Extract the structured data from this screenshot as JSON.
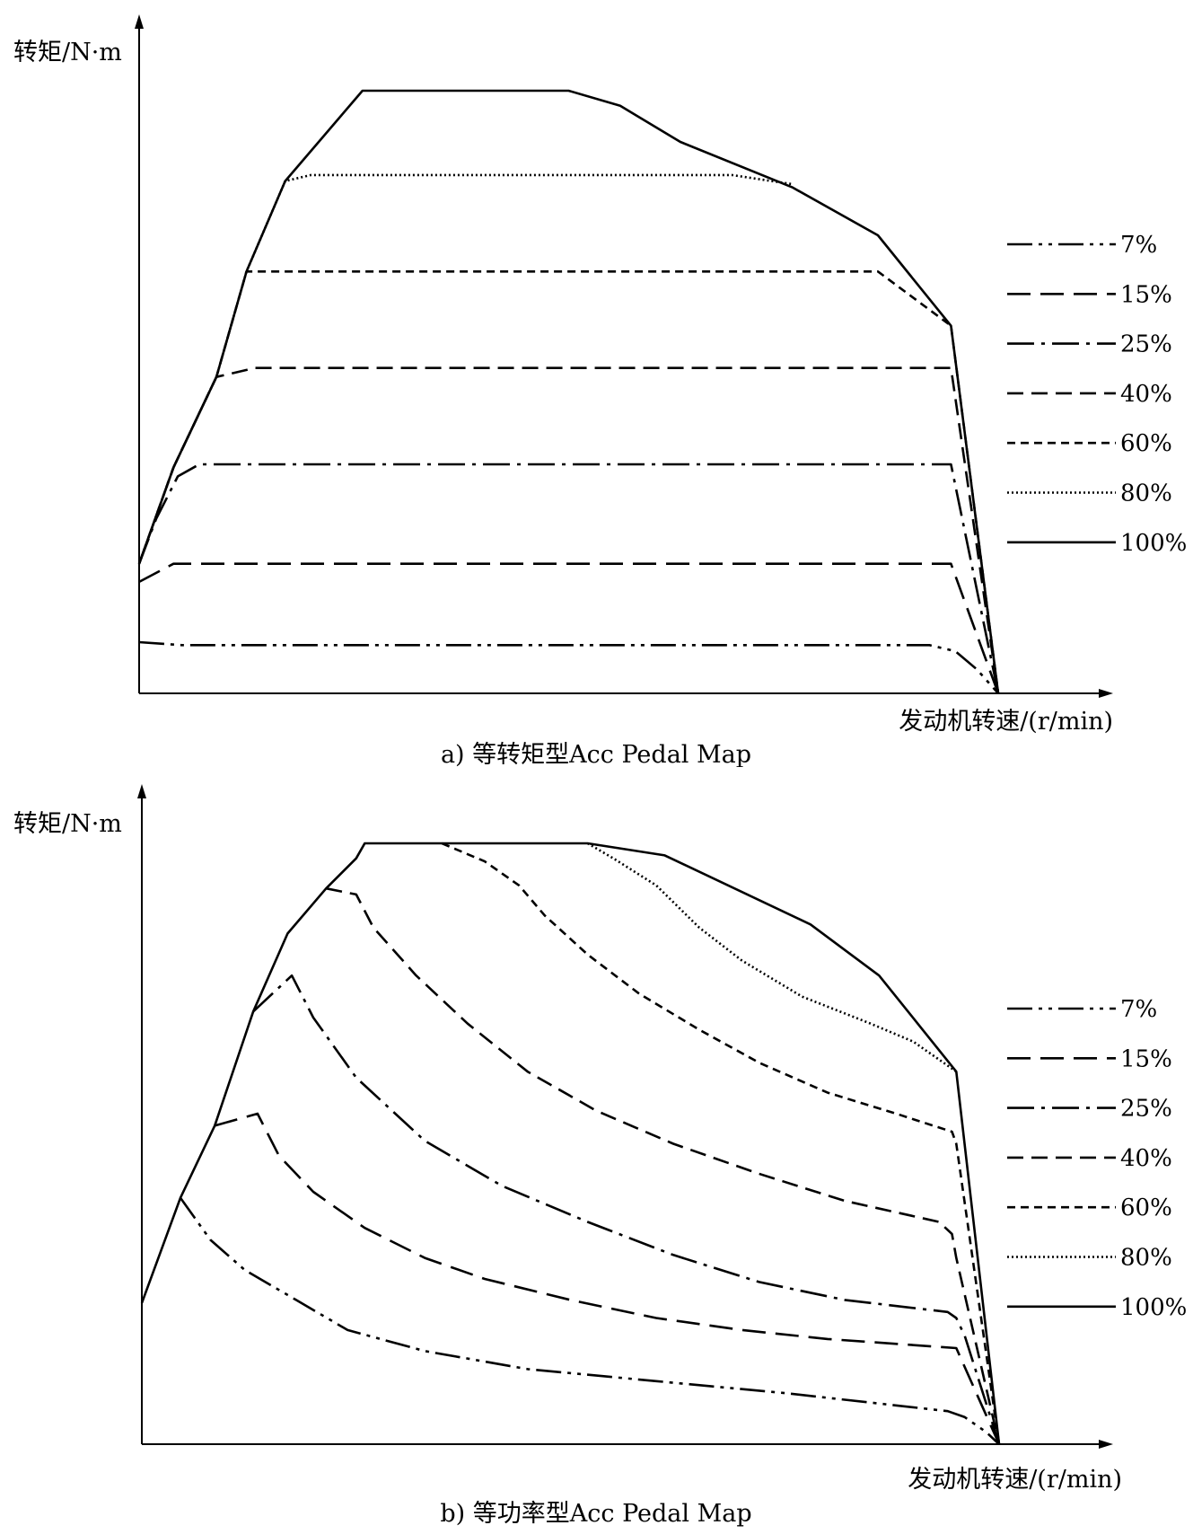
{
  "chart_data": [
    {
      "type": "line",
      "caption": "a) 等转矩型Acc Pedal Map",
      "ylabel": "转矩/N·m",
      "xlabel": "发动机转速/(r/min)",
      "legend": {
        "placement": "right",
        "entries": [
          "7%",
          "15%",
          "25%",
          "40%",
          "60%",
          "80%",
          "100%"
        ]
      },
      "xlim": [
        0,
        100
      ],
      "ylim": [
        0,
        100
      ],
      "ticks": "none",
      "grid": false,
      "series": [
        {
          "name": "7%",
          "style": "dash-dot-dot",
          "points": [
            [
              0,
              8.5
            ],
            [
              5,
              8
            ],
            [
              92,
              8
            ],
            [
              95,
              7
            ],
            [
              97.5,
              4
            ],
            [
              100,
              0
            ]
          ]
        },
        {
          "name": "15%",
          "style": "long-dash",
          "points": [
            [
              0,
              18.5
            ],
            [
              4,
              21.5
            ],
            [
              94.5,
              21.5
            ],
            [
              100,
              0
            ]
          ]
        },
        {
          "name": "25%",
          "style": "dash-dot",
          "points": [
            [
              0,
              21.5
            ],
            [
              2,
              29
            ],
            [
              4.5,
              36
            ],
            [
              7,
              38
            ],
            [
              94.5,
              38
            ],
            [
              100,
              0
            ]
          ]
        },
        {
          "name": "40%",
          "style": "dash",
          "points": [
            [
              0,
              21.5
            ],
            [
              4,
              37.5
            ],
            [
              9,
              52.5
            ],
            [
              13.5,
              54
            ],
            [
              94.5,
              54
            ],
            [
              100,
              0
            ]
          ]
        },
        {
          "name": "60%",
          "style": "short-dash",
          "points": [
            [
              0,
              21.5
            ],
            [
              4,
              37.5
            ],
            [
              9,
              52.5
            ],
            [
              12.5,
              70
            ],
            [
              86,
              70
            ],
            [
              94.5,
              61
            ],
            [
              100,
              0
            ]
          ]
        },
        {
          "name": "80%",
          "style": "dotted",
          "points": [
            [
              0,
              21.5
            ],
            [
              4,
              37.5
            ],
            [
              9,
              52.5
            ],
            [
              12.5,
              70
            ],
            [
              17,
              85
            ],
            [
              20,
              86
            ],
            [
              69,
              86
            ],
            [
              76,
              84.5
            ]
          ]
        },
        {
          "name": "100%",
          "style": "solid",
          "points": [
            [
              0,
              21.5
            ],
            [
              4,
              37.5
            ],
            [
              9,
              52.5
            ],
            [
              12.5,
              70
            ],
            [
              17,
              85
            ],
            [
              26,
              100
            ],
            [
              50,
              100
            ],
            [
              56,
              97.5
            ],
            [
              63,
              91.5
            ],
            [
              76,
              84
            ],
            [
              86,
              76
            ],
            [
              94.5,
              61
            ],
            [
              100,
              0
            ]
          ]
        }
      ]
    },
    {
      "type": "line",
      "caption": "b) 等功率型Acc Pedal Map",
      "ylabel": "转矩/N·m",
      "xlabel": "发动机转速/(r/min)",
      "legend": {
        "placement": "right",
        "entries": [
          "7%",
          "15%",
          "25%",
          "40%",
          "60%",
          "80%",
          "100%"
        ]
      },
      "xlim": [
        0,
        100
      ],
      "ylim": [
        0,
        100
      ],
      "ticks": "none",
      "grid": false,
      "series": [
        {
          "name": "7%",
          "style": "dash-dot-dot",
          "points": [
            [
              4.5,
              41
            ],
            [
              8,
              34
            ],
            [
              12,
              29
            ],
            [
              18,
              24
            ],
            [
              24,
              19
            ],
            [
              33,
              15.5
            ],
            [
              45,
              12.5
            ],
            [
              60,
              10.5
            ],
            [
              75,
              8.5
            ],
            [
              94,
              5.5
            ],
            [
              96,
              4.5
            ],
            [
              98.5,
              2
            ],
            [
              100,
              0
            ]
          ]
        },
        {
          "name": "15%",
          "style": "long-dash",
          "points": [
            [
              8.5,
              53
            ],
            [
              13.5,
              55
            ],
            [
              16,
              48
            ],
            [
              20,
              42
            ],
            [
              26,
              36
            ],
            [
              33,
              31
            ],
            [
              40,
              27.5
            ],
            [
              50,
              24
            ],
            [
              60,
              21
            ],
            [
              70,
              19
            ],
            [
              80,
              17.5
            ],
            [
              95,
              16
            ],
            [
              100,
              0
            ]
          ]
        },
        {
          "name": "25%",
          "style": "dash-dot",
          "points": [
            [
              13,
              72
            ],
            [
              17.5,
              78
            ],
            [
              20,
              71
            ],
            [
              25,
              61
            ],
            [
              33,
              50.5
            ],
            [
              42,
              43
            ],
            [
              52,
              37
            ],
            [
              62,
              31.5
            ],
            [
              72,
              27
            ],
            [
              82,
              24
            ],
            [
              94,
              22
            ],
            [
              95,
              21
            ],
            [
              96,
              18
            ],
            [
              100,
              0
            ]
          ]
        },
        {
          "name": "40%",
          "style": "dash",
          "points": [
            [
              21.5,
              92.5
            ],
            [
              25,
              91.5
            ],
            [
              27,
              86
            ],
            [
              32,
              78
            ],
            [
              38,
              70
            ],
            [
              45,
              62
            ],
            [
              53,
              55.5
            ],
            [
              62,
              50
            ],
            [
              72,
              45
            ],
            [
              82,
              40.5
            ],
            [
              93,
              37
            ],
            [
              94.5,
              35
            ],
            [
              95,
              31
            ],
            [
              100,
              0
            ]
          ]
        },
        {
          "name": "60%",
          "style": "short-dash",
          "points": [
            [
              35,
              100
            ],
            [
              40,
              97
            ],
            [
              44,
              93
            ],
            [
              47,
              88
            ],
            [
              52,
              81.5
            ],
            [
              58,
              75
            ],
            [
              65,
              69
            ],
            [
              72,
              63.5
            ],
            [
              80,
              58.5
            ],
            [
              88,
              55
            ],
            [
              94.5,
              52
            ],
            [
              95,
              50
            ],
            [
              100,
              0
            ]
          ]
        },
        {
          "name": "80%",
          "style": "dotted",
          "points": [
            [
              52,
              100
            ],
            [
              55,
              97.5
            ],
            [
              60,
              93
            ],
            [
              65,
              86
            ],
            [
              70,
              80.5
            ],
            [
              77,
              74.5
            ],
            [
              85,
              70
            ],
            [
              90,
              67
            ],
            [
              95,
              62
            ]
          ]
        },
        {
          "name": "100%",
          "style": "solid",
          "points": [
            [
              0,
              23.5
            ],
            [
              4.5,
              41
            ],
            [
              8.5,
              53
            ],
            [
              13,
              72
            ],
            [
              17,
              85
            ],
            [
              21.5,
              92.5
            ],
            [
              25,
              97.5
            ],
            [
              26,
              100
            ],
            [
              52,
              100
            ],
            [
              61,
              98
            ],
            [
              78,
              86.5
            ],
            [
              86,
              78
            ],
            [
              95,
              62
            ],
            [
              100,
              0
            ]
          ]
        }
      ]
    }
  ]
}
